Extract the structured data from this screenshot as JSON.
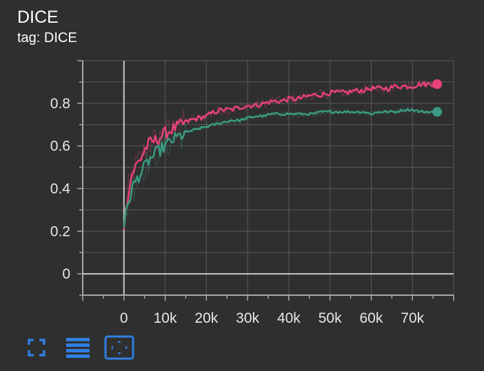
{
  "card": {
    "title": "DICE",
    "tag": "tag: DICE"
  },
  "toolbar": {
    "buttons": [
      {
        "icon": "fullscreen-icon"
      },
      {
        "icon": "lines-icon"
      },
      {
        "icon": "fit-domain-icon"
      }
    ]
  },
  "colors": {
    "background": "#2f2f2f",
    "grid": "#5a5a5a",
    "axis": "#a8a8a8",
    "series_pink": "#e8427a",
    "series_teal": "#3a9a82",
    "toolbar_icon": "#2f7fe0"
  },
  "chart_data": {
    "type": "line",
    "title": "DICE",
    "xlabel": "",
    "ylabel": "",
    "xlim": [
      -10000,
      80000
    ],
    "ylim": [
      -0.1,
      1.0
    ],
    "x_ticks": [
      0,
      10000,
      20000,
      30000,
      40000,
      50000,
      60000,
      70000
    ],
    "x_tick_labels": [
      "0",
      "10k",
      "20k",
      "30k",
      "40k",
      "50k",
      "60k",
      "70k"
    ],
    "y_ticks": [
      0,
      0.2,
      0.4,
      0.6,
      0.8
    ],
    "y_tick_labels": [
      "0",
      "0.2",
      "0.4",
      "0.6",
      "0.8"
    ],
    "grid": true,
    "series": [
      {
        "color": "#e8427a",
        "x": [
          0,
          1000,
          2000,
          3000,
          4000,
          5000,
          6000,
          8000,
          10000,
          12000,
          14000,
          16000,
          18000,
          20000,
          22000,
          24000,
          26000,
          28000,
          30000,
          32000,
          34000,
          36000,
          38000,
          40000,
          42000,
          44000,
          46000,
          48000,
          50000,
          52000,
          54000,
          56000,
          58000,
          60000,
          62000,
          64000,
          66000,
          68000,
          70000,
          72000,
          74000,
          76000
        ],
        "y": [
          0.23,
          0.38,
          0.47,
          0.51,
          0.54,
          0.58,
          0.61,
          0.63,
          0.66,
          0.68,
          0.7,
          0.72,
          0.73,
          0.74,
          0.76,
          0.77,
          0.77,
          0.78,
          0.79,
          0.79,
          0.8,
          0.81,
          0.81,
          0.82,
          0.82,
          0.83,
          0.84,
          0.84,
          0.85,
          0.85,
          0.85,
          0.86,
          0.86,
          0.87,
          0.87,
          0.87,
          0.88,
          0.88,
          0.88,
          0.89,
          0.89,
          0.89
        ]
      },
      {
        "color": "#3a9a82",
        "x": [
          0,
          1000,
          2000,
          3000,
          4000,
          5000,
          6000,
          8000,
          10000,
          12000,
          14000,
          16000,
          18000,
          20000,
          22000,
          24000,
          26000,
          28000,
          30000,
          32000,
          34000,
          36000,
          38000,
          40000,
          42000,
          44000,
          46000,
          48000,
          50000,
          52000,
          54000,
          56000,
          58000,
          60000,
          62000,
          64000,
          66000,
          68000,
          70000,
          72000,
          74000,
          76000
        ],
        "y": [
          0.23,
          0.33,
          0.4,
          0.44,
          0.47,
          0.5,
          0.53,
          0.57,
          0.6,
          0.63,
          0.65,
          0.67,
          0.68,
          0.69,
          0.7,
          0.71,
          0.72,
          0.72,
          0.73,
          0.74,
          0.74,
          0.75,
          0.75,
          0.75,
          0.75,
          0.75,
          0.75,
          0.76,
          0.76,
          0.76,
          0.76,
          0.76,
          0.76,
          0.75,
          0.76,
          0.76,
          0.76,
          0.77,
          0.77,
          0.76,
          0.76,
          0.76
        ]
      }
    ]
  }
}
